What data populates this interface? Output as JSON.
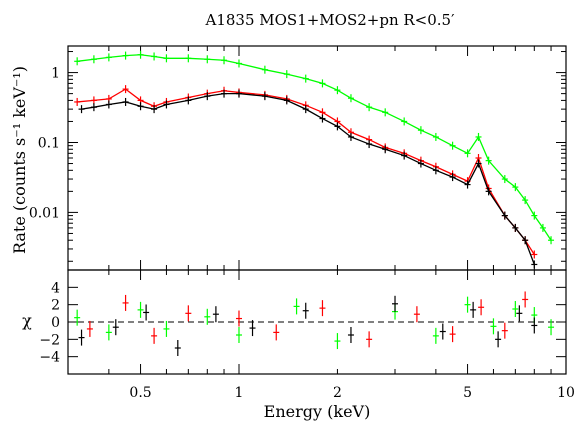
{
  "chart_data": [
    {
      "type": "scatter",
      "panel": "spectrum",
      "title": "A1835  MOS1+MOS2+pn  R<0.5′",
      "ylabel": "Rate (counts s⁻¹ keV⁻¹)",
      "x_scale": "log",
      "y_scale": "log",
      "xlim": [
        0.3,
        10
      ],
      "ylim": [
        0.0015,
        2.4
      ],
      "y_ticks": [
        0.01,
        0.1,
        1
      ],
      "y_tick_labels": [
        "0.01",
        "0.1",
        "1"
      ],
      "series": [
        {
          "color": "#00ff00",
          "points": [
            [
              0.32,
              1.45
            ],
            [
              0.36,
              1.55
            ],
            [
              0.4,
              1.65
            ],
            [
              0.45,
              1.75
            ],
            [
              0.5,
              1.8
            ],
            [
              0.55,
              1.7
            ],
            [
              0.6,
              1.6
            ],
            [
              0.7,
              1.6
            ],
            [
              0.8,
              1.55
            ],
            [
              0.9,
              1.5
            ],
            [
              1.0,
              1.35
            ],
            [
              1.2,
              1.1
            ],
            [
              1.4,
              0.95
            ],
            [
              1.6,
              0.82
            ],
            [
              1.8,
              0.7
            ],
            [
              2.0,
              0.56
            ],
            [
              2.2,
              0.43
            ],
            [
              2.5,
              0.32
            ],
            [
              2.8,
              0.27
            ],
            [
              3.2,
              0.2
            ],
            [
              3.6,
              0.15
            ],
            [
              4.0,
              0.12
            ],
            [
              4.5,
              0.09
            ],
            [
              5.0,
              0.07
            ],
            [
              5.4,
              0.12
            ],
            [
              5.8,
              0.055
            ],
            [
              6.5,
              0.03
            ],
            [
              7.0,
              0.023
            ],
            [
              7.5,
              0.015
            ],
            [
              8.0,
              0.009
            ],
            [
              8.5,
              0.006
            ],
            [
              9.0,
              0.004
            ]
          ]
        },
        {
          "color": "#ff0000",
          "points": [
            [
              0.32,
              0.38
            ],
            [
              0.36,
              0.4
            ],
            [
              0.4,
              0.42
            ],
            [
              0.45,
              0.58
            ],
            [
              0.5,
              0.4
            ],
            [
              0.55,
              0.33
            ],
            [
              0.6,
              0.38
            ],
            [
              0.7,
              0.44
            ],
            [
              0.8,
              0.5
            ],
            [
              0.9,
              0.55
            ],
            [
              1.0,
              0.52
            ],
            [
              1.2,
              0.48
            ],
            [
              1.4,
              0.42
            ],
            [
              1.6,
              0.34
            ],
            [
              1.8,
              0.27
            ],
            [
              2.0,
              0.2
            ],
            [
              2.2,
              0.14
            ],
            [
              2.5,
              0.11
            ],
            [
              2.8,
              0.085
            ],
            [
              3.2,
              0.07
            ],
            [
              3.6,
              0.055
            ],
            [
              4.0,
              0.045
            ],
            [
              4.5,
              0.035
            ],
            [
              5.0,
              0.028
            ],
            [
              5.4,
              0.06
            ],
            [
              5.8,
              0.022
            ],
            [
              6.5,
              0.009
            ],
            [
              7.0,
              0.006
            ],
            [
              7.5,
              0.004
            ],
            [
              8.0,
              0.0025
            ]
          ]
        },
        {
          "color": "#000000",
          "points": [
            [
              0.33,
              0.3
            ],
            [
              0.36,
              0.32
            ],
            [
              0.4,
              0.35
            ],
            [
              0.45,
              0.38
            ],
            [
              0.5,
              0.33
            ],
            [
              0.55,
              0.3
            ],
            [
              0.6,
              0.35
            ],
            [
              0.7,
              0.4
            ],
            [
              0.8,
              0.46
            ],
            [
              0.9,
              0.5
            ],
            [
              1.0,
              0.5
            ],
            [
              1.2,
              0.46
            ],
            [
              1.4,
              0.4
            ],
            [
              1.6,
              0.3
            ],
            [
              1.8,
              0.22
            ],
            [
              2.0,
              0.17
            ],
            [
              2.2,
              0.12
            ],
            [
              2.5,
              0.095
            ],
            [
              2.8,
              0.08
            ],
            [
              3.2,
              0.065
            ],
            [
              3.6,
              0.05
            ],
            [
              4.0,
              0.04
            ],
            [
              4.5,
              0.032
            ],
            [
              5.0,
              0.025
            ],
            [
              5.4,
              0.05
            ],
            [
              5.8,
              0.02
            ],
            [
              6.5,
              0.009
            ],
            [
              7.0,
              0.006
            ],
            [
              7.5,
              0.004
            ],
            [
              8.0,
              0.0018
            ]
          ]
        }
      ]
    },
    {
      "type": "scatter",
      "panel": "residuals",
      "xlabel": "Energy (keV)",
      "ylabel": "χ",
      "x_scale": "log",
      "xlim": [
        0.3,
        10
      ],
      "ylim": [
        -6,
        6
      ],
      "y_ticks": [
        -4,
        -2,
        0,
        2,
        4
      ],
      "y_tick_labels": [
        "−4",
        "−2",
        "0",
        "2",
        "4"
      ],
      "x_ticks": [
        0.5,
        1,
        2,
        5,
        10
      ],
      "x_tick_labels": [
        "0.5",
        "1",
        "2",
        "5",
        "10"
      ],
      "reference_line": 0,
      "series": [
        {
          "color": "#00ff00",
          "points": [
            [
              0.32,
              0.5
            ],
            [
              0.4,
              -1.2
            ],
            [
              0.5,
              1.4
            ],
            [
              0.6,
              -0.8
            ],
            [
              0.8,
              0.6
            ],
            [
              1.0,
              -1.5
            ],
            [
              1.5,
              1.8
            ],
            [
              2.0,
              -2.2
            ],
            [
              3.0,
              1.2
            ],
            [
              4.0,
              -1.6
            ],
            [
              5.0,
              2.0
            ],
            [
              6.0,
              -0.5
            ],
            [
              7.0,
              1.5
            ],
            [
              8.0,
              0.8
            ],
            [
              9.0,
              -0.6
            ]
          ]
        },
        {
          "color": "#ff0000",
          "points": [
            [
              0.35,
              -0.8
            ],
            [
              0.45,
              2.2
            ],
            [
              0.55,
              -1.6
            ],
            [
              0.7,
              1.0
            ],
            [
              1.0,
              0.4
            ],
            [
              1.3,
              -1.2
            ],
            [
              1.8,
              1.6
            ],
            [
              2.5,
              -2.0
            ],
            [
              3.5,
              0.9
            ],
            [
              4.5,
              -1.4
            ],
            [
              5.5,
              1.7
            ],
            [
              6.5,
              -1.0
            ],
            [
              7.5,
              2.6
            ]
          ]
        },
        {
          "color": "#000000",
          "points": [
            [
              0.33,
              -1.8
            ],
            [
              0.42,
              -0.6
            ],
            [
              0.52,
              1.1
            ],
            [
              0.65,
              -3.0
            ],
            [
              0.85,
              0.9
            ],
            [
              1.1,
              -0.7
            ],
            [
              1.6,
              1.3
            ],
            [
              2.2,
              -1.5
            ],
            [
              3.0,
              2.1
            ],
            [
              4.2,
              -1.1
            ],
            [
              5.2,
              1.4
            ],
            [
              6.2,
              -2.0
            ],
            [
              7.2,
              1.0
            ],
            [
              8.0,
              -0.4
            ]
          ]
        }
      ]
    }
  ]
}
